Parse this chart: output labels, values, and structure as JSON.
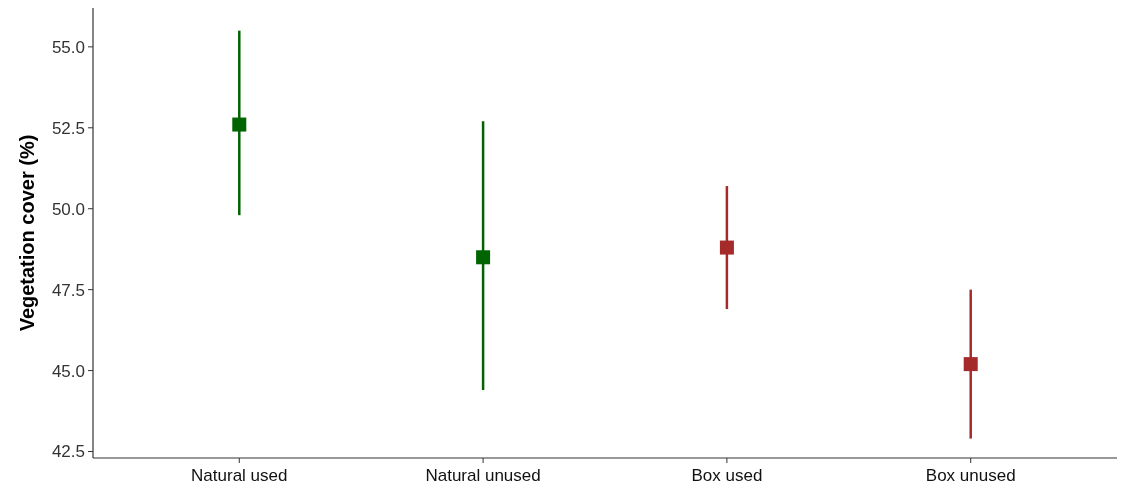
{
  "chart_data": {
    "type": "scatter",
    "ylabel": "Vegetation cover (%)",
    "categories": [
      "Natural used",
      "Natural unused",
      "Box used",
      "Box unused"
    ],
    "values": [
      52.6,
      48.5,
      48.8,
      45.2
    ],
    "errors": [
      [
        49.8,
        55.5
      ],
      [
        44.4,
        52.7
      ],
      [
        46.9,
        50.7
      ],
      [
        42.9,
        47.5
      ]
    ],
    "colors": [
      "#006400",
      "#006400",
      "#a52a2a",
      "#a52a2a"
    ],
    "ylim": [
      42.3,
      56.2
    ],
    "yticks": [
      {
        "value": 42.5,
        "label": "42.5"
      },
      {
        "value": 45,
        "label": "45.0"
      },
      {
        "value": 47.5,
        "label": "47.5"
      },
      {
        "value": 50,
        "label": "50.0"
      },
      {
        "value": 52.5,
        "label": "52.5"
      },
      {
        "value": 55,
        "label": "55.0"
      }
    ],
    "marker": "square",
    "grid": false
  }
}
